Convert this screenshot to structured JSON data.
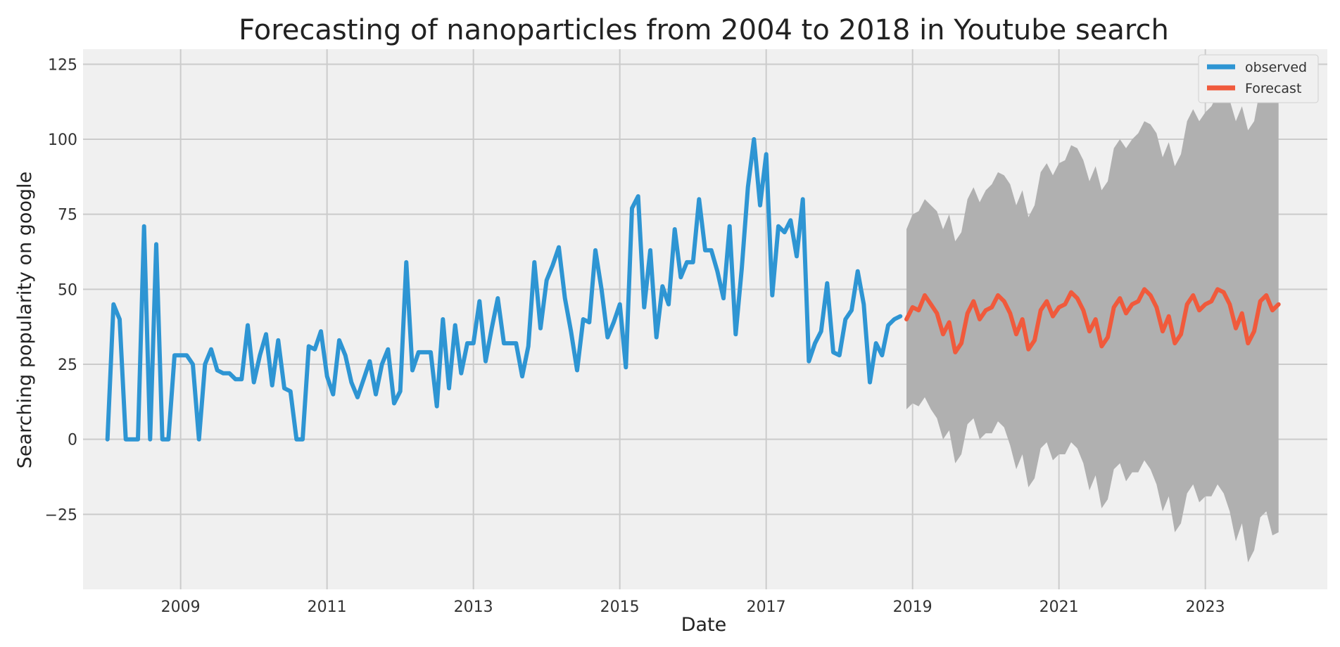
{
  "chart_data": {
    "type": "line",
    "title": "Forecasting of nanoparticles from 2004 to 2018 in Youtube search",
    "xlabel": "Date",
    "ylabel": "Searching popularity on google",
    "xlim": [
      "2007-09-01",
      "2024-09-01"
    ],
    "ylim": [
      -50,
      130
    ],
    "x_ticks": [
      "2009",
      "2011",
      "2013",
      "2015",
      "2017",
      "2019",
      "2021",
      "2023"
    ],
    "y_ticks": [
      125,
      100,
      75,
      50,
      25,
      0,
      -25
    ],
    "y_tick_labels": [
      "125",
      "100",
      "75",
      "50",
      "25",
      "0",
      "−25"
    ],
    "grid": true,
    "legend_position": "top-right",
    "colors": {
      "background": "#f0f0f0",
      "grid": "#cbcbcb",
      "observed": "#2e95d3",
      "forecast": "#f05a3c",
      "confidence_band": "#b0b0b0"
    },
    "series": [
      {
        "name": "observed",
        "start": "2008-01",
        "frequency": "monthly",
        "values": [
          0,
          45,
          40,
          0,
          0,
          0,
          71,
          0,
          65,
          0,
          0,
          28,
          28,
          28,
          25,
          0,
          25,
          30,
          23,
          22,
          22,
          20,
          20,
          38,
          19,
          28,
          35,
          18,
          33,
          17,
          16,
          0,
          0,
          31,
          30,
          36,
          21,
          15,
          33,
          28,
          19,
          14,
          20,
          26,
          15,
          25,
          30,
          12,
          16,
          59,
          23,
          29,
          29,
          29,
          11,
          40,
          17,
          38,
          22,
          32,
          32,
          46,
          26,
          37,
          47,
          32,
          32,
          32,
          21,
          31,
          59,
          37,
          53,
          58,
          64,
          47,
          36,
          23,
          40,
          39,
          63,
          50,
          34,
          39,
          45,
          24,
          77,
          81,
          44,
          63,
          34,
          51,
          45,
          70,
          54,
          59,
          59,
          80,
          63,
          63,
          56,
          47,
          71,
          35,
          57,
          84,
          100,
          78,
          95,
          48,
          71,
          69,
          73,
          61,
          80,
          26,
          32,
          36,
          52,
          29,
          28,
          40,
          43,
          56,
          45,
          19,
          32,
          28,
          38,
          40,
          41
        ]
      },
      {
        "name": "Forecast",
        "start": "2018-12",
        "frequency": "monthly",
        "values": [
          40,
          44,
          43,
          48,
          45,
          42,
          35,
          39,
          29,
          32,
          42,
          46,
          40,
          43,
          44,
          48,
          46,
          42,
          35,
          40,
          30,
          33,
          43,
          46,
          41,
          44,
          45,
          49,
          47,
          43,
          36,
          40,
          31,
          34,
          44,
          47,
          42,
          45,
          46,
          50,
          48,
          44,
          36,
          41,
          32,
          35,
          45,
          48,
          43,
          45,
          46,
          50,
          49,
          45,
          37,
          42,
          32,
          36,
          46,
          48,
          43,
          45
        ],
        "lower": [
          10,
          12,
          11,
          14,
          10,
          7,
          0,
          3,
          -8,
          -5,
          5,
          7,
          0,
          2,
          2,
          6,
          4,
          -2,
          -10,
          -5,
          -16,
          -13,
          -3,
          -1,
          -7,
          -5,
          -5,
          -1,
          -3,
          -8,
          -17,
          -12,
          -23,
          -20,
          -10,
          -8,
          -14,
          -11,
          -11,
          -7,
          -10,
          -15,
          -24,
          -19,
          -31,
          -28,
          -18,
          -15,
          -21,
          -19,
          -19,
          -15,
          -18,
          -24,
          -34,
          -28,
          -41,
          -37,
          -26,
          -24,
          -32,
          -31
        ],
        "upper": [
          70,
          75,
          76,
          80,
          78,
          76,
          70,
          75,
          66,
          69,
          80,
          84,
          79,
          83,
          85,
          89,
          88,
          85,
          78,
          83,
          74,
          78,
          89,
          92,
          88,
          92,
          93,
          98,
          97,
          93,
          86,
          91,
          83,
          86,
          97,
          100,
          97,
          100,
          102,
          106,
          105,
          102,
          94,
          99,
          91,
          95,
          106,
          110,
          106,
          109,
          111,
          115,
          115,
          113,
          106,
          111,
          103,
          106,
          117,
          120,
          117,
          121
        ]
      }
    ]
  }
}
